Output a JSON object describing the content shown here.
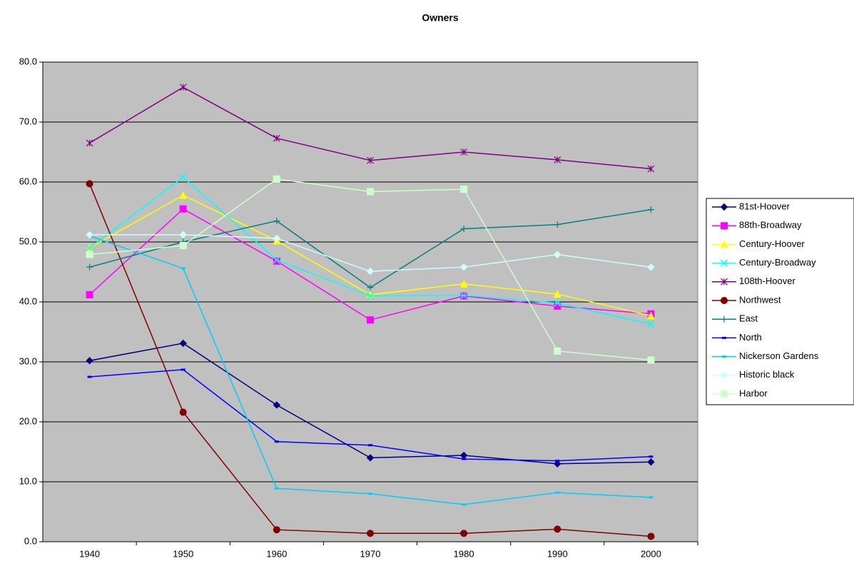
{
  "chart_data": {
    "type": "line",
    "title": "Owners",
    "categories": [
      "1940",
      "1950",
      "1960",
      "1970",
      "1980",
      "1990",
      "2000"
    ],
    "ylim": [
      0,
      80
    ],
    "yticks": [
      {
        "value": 0,
        "label": "0.0"
      },
      {
        "value": 10,
        "label": "10.0"
      },
      {
        "value": 20,
        "label": "20.0"
      },
      {
        "value": 30,
        "label": "30.0"
      },
      {
        "value": 40,
        "label": "40.0"
      },
      {
        "value": 50,
        "label": "50.0"
      },
      {
        "value": 60,
        "label": "60.0"
      },
      {
        "value": 70,
        "label": "70.0"
      },
      {
        "value": 80,
        "label": "80.0"
      }
    ],
    "grid": true,
    "legend": "right",
    "series": [
      {
        "name": "81st-Hoover",
        "color": "#000080",
        "marker": "diamond",
        "values": [
          30.2,
          33.1,
          22.8,
          14.0,
          14.4,
          13.0,
          13.3
        ]
      },
      {
        "name": "88th-Broadway",
        "color": "#ff00ff",
        "marker": "square",
        "values": [
          41.2,
          55.5,
          46.8,
          37.0,
          41.0,
          39.3,
          38.0
        ]
      },
      {
        "name": "Century-Hoover",
        "color": "#ffff00",
        "marker": "triangle",
        "values": [
          49.0,
          57.8,
          50.2,
          41.2,
          43.0,
          41.3,
          37.7
        ]
      },
      {
        "name": "Century-Broadway",
        "color": "#00ffff",
        "marker": "x",
        "values": [
          49.0,
          60.8,
          47.0,
          41.0,
          41.1,
          39.8,
          36.3
        ]
      },
      {
        "name": "108th-Hoover",
        "color": "#800080",
        "marker": "asterisk",
        "values": [
          66.5,
          75.8,
          67.3,
          63.6,
          65.0,
          63.7,
          62.2
        ]
      },
      {
        "name": "Northwest",
        "color": "#800000",
        "marker": "circle",
        "values": [
          59.7,
          21.6,
          2.0,
          1.4,
          1.4,
          2.1,
          0.9
        ]
      },
      {
        "name": "East",
        "color": "#008080",
        "marker": "plus",
        "values": [
          45.8,
          50.0,
          53.5,
          42.4,
          52.2,
          52.9,
          55.4
        ]
      },
      {
        "name": "North",
        "color": "#0000ff",
        "marker": "dash",
        "values": [
          27.5,
          28.7,
          16.7,
          16.1,
          13.8,
          13.5,
          14.2
        ]
      },
      {
        "name": "Nickerson Gardens",
        "color": "#00ccff",
        "marker": "dash",
        "values": [
          51.0,
          45.6,
          8.9,
          8.0,
          6.2,
          8.2,
          7.4
        ]
      },
      {
        "name": "Historic black",
        "color": "#ccffff",
        "marker": "diamond",
        "values": [
          51.2,
          51.2,
          50.6,
          45.1,
          45.8,
          47.9,
          45.8
        ]
      },
      {
        "name": "Harbor",
        "color": "#ccffcc",
        "marker": "square",
        "values": [
          47.9,
          49.4,
          60.5,
          58.4,
          58.8,
          31.8,
          30.3
        ]
      }
    ]
  }
}
